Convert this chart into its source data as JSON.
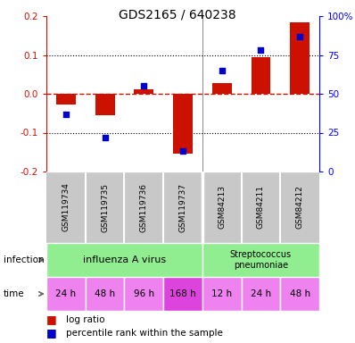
{
  "title": "GDS2165 / 640238",
  "samples": [
    "GSM119734",
    "GSM119735",
    "GSM119736",
    "GSM119737",
    "GSM84213",
    "GSM84211",
    "GSM84212"
  ],
  "log_ratio": [
    -0.028,
    -0.055,
    0.012,
    -0.155,
    0.028,
    0.095,
    0.185
  ],
  "percentile_rank": [
    37,
    22,
    55,
    13,
    65,
    78,
    87
  ],
  "ylim_left": [
    -0.2,
    0.2
  ],
  "ylim_right": [
    0,
    100
  ],
  "influenza_label": "influenza A virus",
  "strep_label": "Streptococcus\npneumoniae",
  "group_color": "#90EE90",
  "time_labels": [
    "24 h",
    "48 h",
    "96 h",
    "168 h",
    "12 h",
    "24 h",
    "48 h"
  ],
  "time_colors": [
    "#EE82EE",
    "#EE82EE",
    "#EE82EE",
    "#DD44DD",
    "#EE82EE",
    "#EE82EE",
    "#EE82EE"
  ],
  "bar_color": "#CC1100",
  "dot_color": "#0000CC",
  "legend_red": "log ratio",
  "legend_blue": "percentile rank within the sample",
  "sample_bg": "#C8C8C8",
  "sample_sep_color": "#ffffff",
  "left_yticks": [
    -0.2,
    -0.1,
    0.0,
    0.1,
    0.2
  ],
  "right_yticks": [
    0,
    25,
    50,
    75,
    100
  ],
  "right_yticklabels": [
    "0",
    "25",
    "50",
    "75",
    "100%"
  ]
}
